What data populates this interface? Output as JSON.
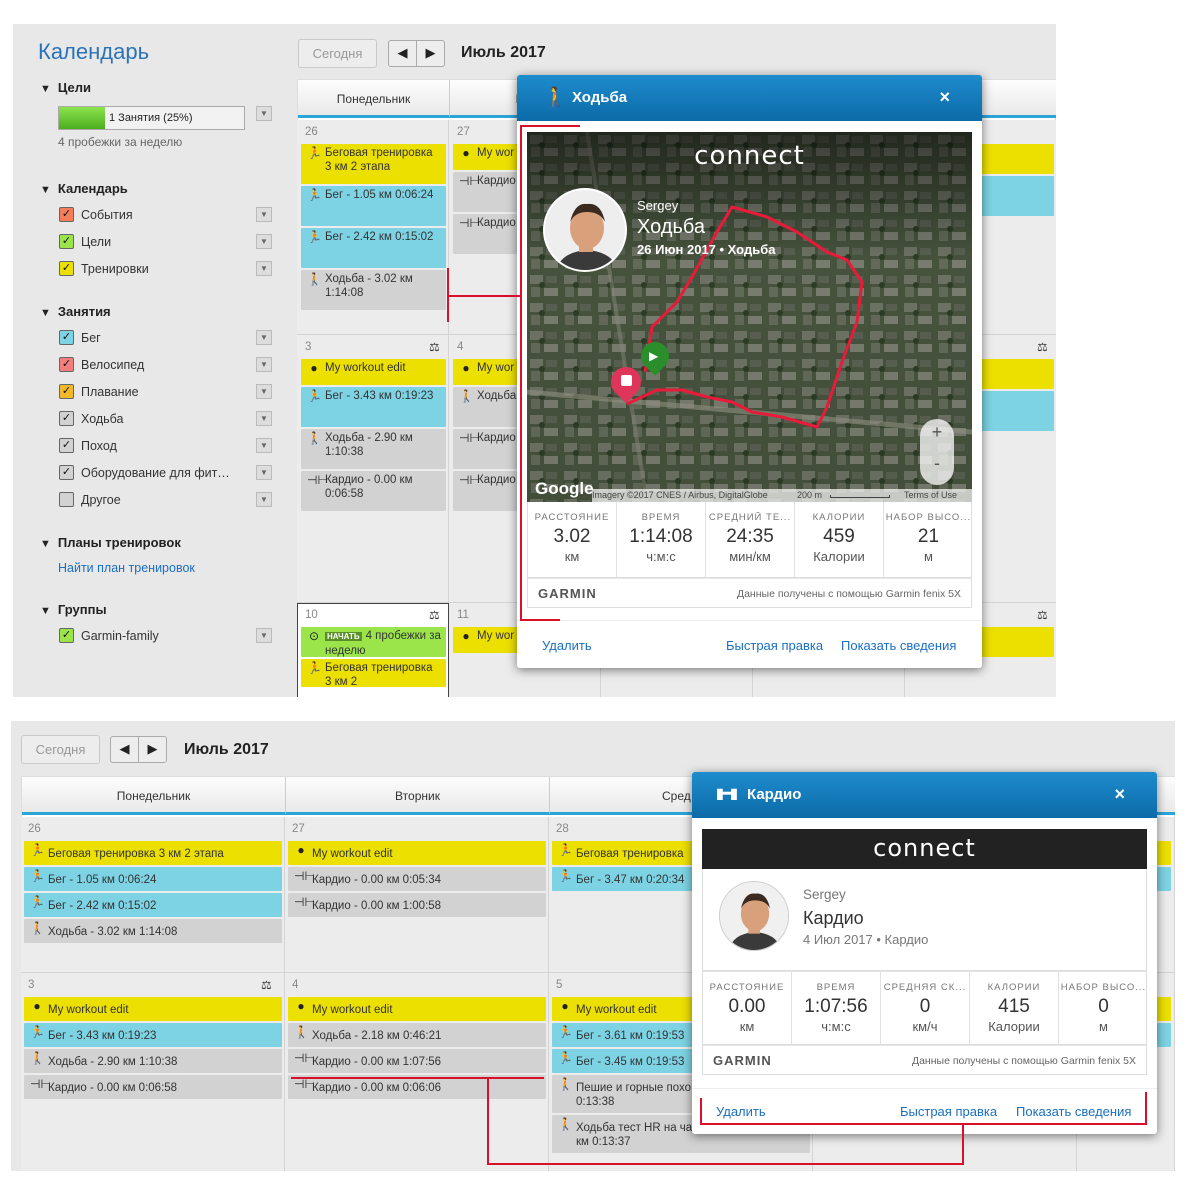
{
  "colors": {
    "accent": "#2ba4d8",
    "header_blue": "#0c6aa8",
    "highlight": "#d8102c",
    "yellow": "#ece000",
    "blue": "#7dd3e4",
    "grey": "#d2d2d2",
    "green": "#9be54a"
  },
  "top": {
    "app_title": "Календарь",
    "today_btn": "Сегодня",
    "prev": "◀",
    "next": "▶",
    "month": "Июль 2017",
    "goals": {
      "heading": "Цели",
      "progress_text": "1 Занятия (25%)",
      "progress": 0.25,
      "sub": "4 пробежки за неделю"
    },
    "calendar": {
      "heading": "Календарь",
      "items": [
        {
          "label": "События",
          "color": "#f47d5c"
        },
        {
          "label": "Цели",
          "color": "#9be54a"
        },
        {
          "label": "Тренировки",
          "color": "#ece000"
        }
      ]
    },
    "activities": {
      "heading": "Занятия",
      "items": [
        {
          "label": "Бег",
          "color": "#7dd3e4"
        },
        {
          "label": "Велосипед",
          "color": "#f47d7d"
        },
        {
          "label": "Плавание",
          "color": "#f2b82b"
        },
        {
          "label": "Ходьба",
          "color": "#d2d2d2"
        },
        {
          "label": "Поход",
          "color": "#d2d2d2"
        },
        {
          "label": "Оборудование для фит…",
          "color": "#d2d2d2"
        },
        {
          "label": "Другое",
          "color": "#d2d2d2"
        }
      ]
    },
    "plans": {
      "heading": "Планы тренировок",
      "link": "Найти план тренировок"
    },
    "groups": {
      "heading": "Группы",
      "items": [
        {
          "label": "Garmin-family",
          "color": "#9be54a"
        }
      ]
    },
    "col_headers": [
      "Понедельник",
      "Вто",
      "ица"
    ],
    "week1": {
      "mon_day": "26",
      "tue_day": "27",
      "mon": [
        {
          "t": "Беговая тренировка 3 км 2 этапа",
          "c": "y"
        },
        {
          "t": "Бег - 1.05 км 0:06:24",
          "c": "b"
        },
        {
          "t": "Бег - 2.42 км 0:15:02",
          "c": "b"
        },
        {
          "t": "Ходьба - 3.02 км 1:14:08",
          "c": "g"
        }
      ],
      "tue": [
        {
          "t": "My wor",
          "c": "y"
        },
        {
          "t": "Кардио 0:05:34",
          "c": "g"
        },
        {
          "t": "Кардио 1:00:58",
          "c": "g"
        }
      ],
      "fri": [
        {
          "t": "ировка\nпа",
          "c": "y"
        },
        {
          "t": "км",
          "c": "b"
        }
      ]
    },
    "week2": {
      "mon_day": "3",
      "tue_day": "4",
      "mon": [
        {
          "t": "My workout edit",
          "c": "y"
        },
        {
          "t": "Бег - 3.43 км 0:19:23",
          "c": "b"
        },
        {
          "t": "Ходьба - 2.90 км 1:10:38",
          "c": "g"
        },
        {
          "t": "Кардио - 0.00 км 0:06:58",
          "c": "g"
        }
      ],
      "tue": [
        {
          "t": "My wor",
          "c": "y"
        },
        {
          "t": "Ходьба 0:46:21",
          "c": "g"
        },
        {
          "t": "Кардио 1:07:56",
          "c": "g"
        },
        {
          "t": "Кардио 0:06:06",
          "c": "g"
        }
      ],
      "fri": [
        {
          "t": "ut edit",
          "c": "y"
        },
        {
          "t": "км",
          "c": "b"
        }
      ]
    },
    "week3": {
      "mon_day": "10",
      "tue_day": "11",
      "mon": [
        {
          "badge": "НАЧАТЬ",
          "t": "4 пробежки за неделю",
          "c": "gr"
        },
        {
          "t": "Беговая тренировка 3 км 2",
          "c": "y"
        }
      ],
      "tue": [
        {
          "t": "My wor",
          "c": "y"
        }
      ],
      "fri": [
        {
          "t": "ировка\nпа",
          "c": "y"
        }
      ]
    },
    "modal": {
      "title": "Ходьба",
      "close": "×",
      "brand": "connect",
      "user": "Sergey",
      "activity": "Ходьба",
      "meta": "26 Июн 2017 • Ходьба",
      "google": "Google",
      "imagery": "Imagery ©2017 CNES / Airbus, DigitalGlobe",
      "scale": "200 m",
      "terms": "Terms of Use",
      "zoom_in": "+",
      "zoom_out": "-",
      "stats": [
        {
          "label": "РАССТОЯНИЕ",
          "value": "3.02",
          "unit": "км"
        },
        {
          "label": "ВРЕМЯ",
          "value": "1:14:08",
          "unit": "ч:м:с"
        },
        {
          "label": "СРЕДНИЙ ТЕ...",
          "value": "24:35",
          "unit": "мин/км"
        },
        {
          "label": "КАЛОРИИ",
          "value": "459",
          "unit": "Калории"
        },
        {
          "label": "НАБОР ВЫСО...",
          "value": "21",
          "unit": "м"
        }
      ],
      "garmin": "GARMIN",
      "source": "Данные получены с помощью Garmin fenix 5X",
      "delete": "Удалить",
      "quick_edit": "Быстрая правка",
      "details": "Показать сведения"
    }
  },
  "bottom": {
    "today_btn": "Сегодня",
    "prev": "◀",
    "next": "▶",
    "month": "Июль 2017",
    "col_headers": [
      "Понедельник",
      "Вторник",
      "Сред"
    ],
    "week1": {
      "days": [
        "26",
        "27",
        "28"
      ],
      "mon": [
        {
          "t": "Беговая тренировка 3 км 2 этапа",
          "c": "y"
        },
        {
          "t": "Бег - 1.05 км 0:06:24",
          "c": "b"
        },
        {
          "t": "Бег - 2.42 км 0:15:02",
          "c": "b"
        },
        {
          "t": "Ходьба - 3.02 км 1:14:08",
          "c": "g"
        }
      ],
      "tue": [
        {
          "t": "My workout edit",
          "c": "y"
        },
        {
          "t": "Кардио - 0.00 км 0:05:34",
          "c": "g"
        },
        {
          "t": "Кардио - 0.00 км 1:00:58",
          "c": "g"
        }
      ],
      "wed": [
        {
          "t": "Беговая тренировка",
          "c": "y"
        },
        {
          "t": "Бег - 3.47 км 0:20:34",
          "c": "b"
        }
      ],
      "right": [
        {
          "t": "ре",
          "c": "y"
        },
        {
          "t": "км",
          "c": "b"
        }
      ]
    },
    "week2": {
      "days": [
        "3",
        "4",
        "5"
      ],
      "mon": [
        {
          "t": "My workout edit",
          "c": "y"
        },
        {
          "t": "Бег - 3.43 км 0:19:23",
          "c": "b"
        },
        {
          "t": "Ходьба - 2.90 км 1:10:38",
          "c": "g"
        },
        {
          "t": "Кардио - 0.00 км 0:06:58",
          "c": "g"
        }
      ],
      "tue": [
        {
          "t": "My workout edit",
          "c": "y"
        },
        {
          "t": "Ходьба - 2.18 км 0:46:21",
          "c": "g"
        },
        {
          "t": "Кардио - 0.00 км 1:07:56",
          "c": "g"
        },
        {
          "t": "Кардио - 0.00 км 0:06:06",
          "c": "g"
        }
      ],
      "wed": [
        {
          "t": "My workout edit",
          "c": "y"
        },
        {
          "t": "Бег - 3.61 км 0:19:53",
          "c": "b"
        },
        {
          "t": "Бег - 3.45 км 0:19:53",
          "c": "b"
        },
        {
          "t": "Пешие и горные похо\n0:13:38",
          "c": "g"
        },
        {
          "t": "Ходьба тест HR на часах с Епикс - 1.14\nкм 0:13:37",
          "c": "g"
        }
      ],
      "right": [
        {
          "t": "ut e",
          "c": "y"
        },
        {
          "t": "км",
          "c": "b"
        }
      ]
    },
    "modal": {
      "title": "Кардио",
      "close": "×",
      "brand": "connect",
      "user": "Sergey",
      "activity": "Кардио",
      "meta": "4 Июл 2017 • Кардио",
      "stats": [
        {
          "label": "РАССТОЯНИЕ",
          "value": "0.00",
          "unit": "км"
        },
        {
          "label": "ВРЕМЯ",
          "value": "1:07:56",
          "unit": "ч:м:с"
        },
        {
          "label": "СРЕДНЯЯ СК...",
          "value": "0",
          "unit": "км/ч"
        },
        {
          "label": "КАЛОРИИ",
          "value": "415",
          "unit": "Калории"
        },
        {
          "label": "НАБОР ВЫСО...",
          "value": "0",
          "unit": "м"
        }
      ],
      "garmin": "GARMIN",
      "source": "Данные получены с помощью Garmin fenix 5X",
      "delete": "Удалить",
      "quick_edit": "Быстрая правка",
      "details": "Показать сведения"
    }
  }
}
